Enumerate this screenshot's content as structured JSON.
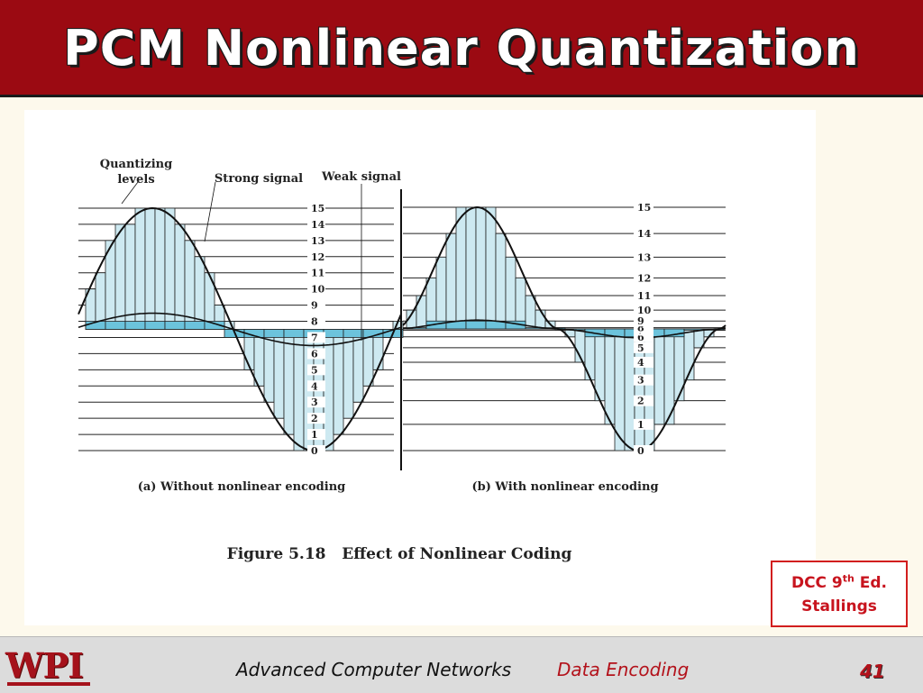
{
  "slide": {
    "title": "PCM Nonlinear Quantization",
    "colors": {
      "title_bar": "#9b0a12",
      "accent": "#b3121b",
      "fill": "#cde9f1",
      "fill_dark": "#6cc3dc"
    }
  },
  "figure": {
    "labels": {
      "quantizing_levels": [
        "Quantizing",
        "levels"
      ],
      "strong_signal": "Strong signal",
      "weak_signal": "Weak signal",
      "caption_a": "(a) Without nonlinear encoding",
      "caption_b": "(b) With nonlinear encoding",
      "figure_caption": "Figure 5.18   Effect of Nonlinear Coding"
    },
    "panel_a_levels": [
      "0",
      "1",
      "2",
      "3",
      "4",
      "5",
      "6",
      "7",
      "8",
      "9",
      "10",
      "11",
      "12",
      "13",
      "14",
      "15"
    ],
    "panel_b_levels": [
      "0",
      "1",
      "2",
      "3",
      "4",
      "5",
      "6",
      "7",
      "8",
      "9",
      "10",
      "11",
      "12",
      "13",
      "14",
      "15"
    ]
  },
  "credit": {
    "line1_prefix": "DCC 9",
    "line1_sup": "th",
    "line1_suffix": " Ed.",
    "line2": "Stallings"
  },
  "footer": {
    "logo_text": "WPI",
    "course": "Advanced Computer Networks",
    "topic": "Data Encoding",
    "page": "41"
  }
}
